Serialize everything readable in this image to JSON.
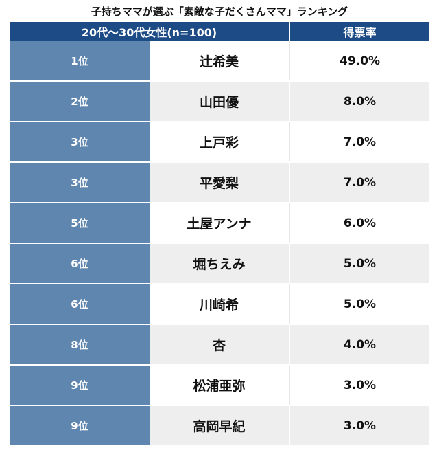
{
  "title": "子持ちママが選ぶ「素敵な子だくさんママ」ランキング",
  "colors": {
    "header": "#1d4b86",
    "rank_cell": "#5f86ae",
    "alt_row": "#eeeeee"
  },
  "chart_data": {
    "type": "table",
    "title": "子持ちママが選ぶ「素敵な子だくさんママ」ランキング",
    "header": {
      "group": "20代〜30代女性(n=100)",
      "rate": "得票率"
    },
    "rows": [
      {
        "rank": "1位",
        "name": "辻希美",
        "pct": "49.0%"
      },
      {
        "rank": "2位",
        "name": "山田優",
        "pct": "8.0%"
      },
      {
        "rank": "3位",
        "name": "上戸彩",
        "pct": "7.0%"
      },
      {
        "rank": "3位",
        "name": "平愛梨",
        "pct": "7.0%"
      },
      {
        "rank": "5位",
        "name": "土屋アンナ",
        "pct": "6.0%"
      },
      {
        "rank": "6位",
        "name": "堀ちえみ",
        "pct": "5.0%"
      },
      {
        "rank": "6位",
        "name": "川崎希",
        "pct": "5.0%"
      },
      {
        "rank": "8位",
        "name": "杏",
        "pct": "4.0%"
      },
      {
        "rank": "9位",
        "name": "松浦亜弥",
        "pct": "3.0%"
      },
      {
        "rank": "9位",
        "name": "高岡早紀",
        "pct": "3.0%"
      }
    ]
  }
}
